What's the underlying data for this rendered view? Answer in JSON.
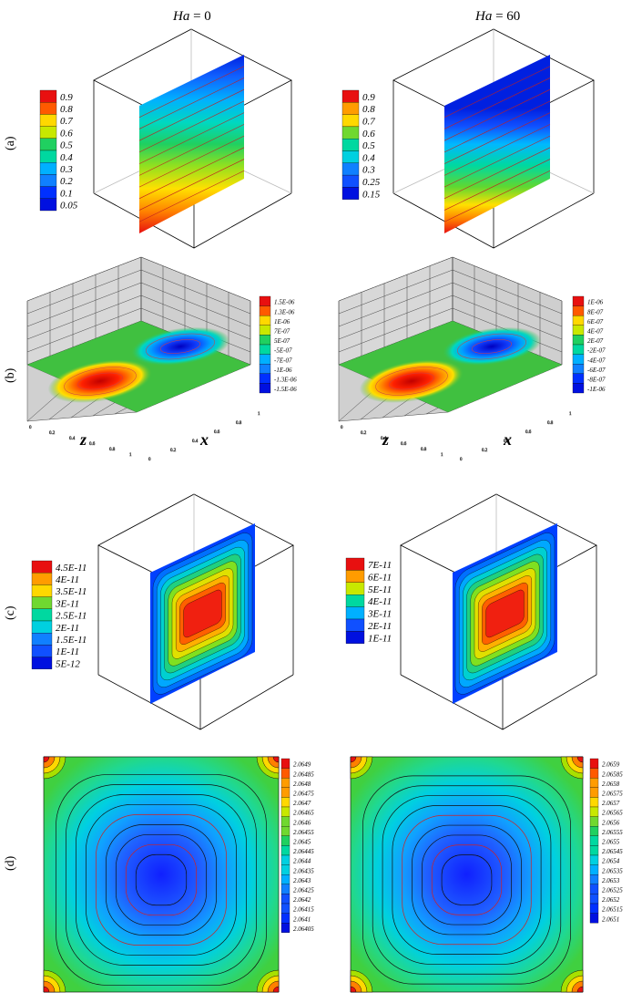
{
  "columns": [
    {
      "ha_symbol": "Ha",
      "ha_text": "= 0"
    },
    {
      "ha_symbol": "Ha",
      "ha_text": "= 60"
    }
  ],
  "rows": [
    {
      "label": "(a)"
    },
    {
      "label": "(b)"
    },
    {
      "label": "(c)"
    },
    {
      "label": "(d)"
    }
  ],
  "axes": {
    "z": "z",
    "x": "x",
    "ticks": [
      "0",
      "0.2",
      "0.4",
      "0.6",
      "0.8",
      "1"
    ]
  },
  "legends": {
    "a_left": [
      "0.9",
      "0.8",
      "0.7",
      "0.6",
      "0.5",
      "0.4",
      "0.3",
      "0.2",
      "0.1",
      "0.05"
    ],
    "a_right": [
      "0.9",
      "0.8",
      "0.7",
      "0.6",
      "0.5",
      "0.4",
      "0.3",
      "0.25",
      "0.15"
    ],
    "b_left": [
      "1.5E-06",
      "1.3E-06",
      "1E-06",
      "7E-07",
      "5E-07",
      "-5E-07",
      "-7E-07",
      "-1E-06",
      "-1.3E-06",
      "-1.5E-06"
    ],
    "b_right": [
      "1E-06",
      "8E-07",
      "6E-07",
      "4E-07",
      "2E-07",
      "-2E-07",
      "-4E-07",
      "-6E-07",
      "-8E-07",
      "-1E-06"
    ],
    "c_left": [
      "4.5E-11",
      "4E-11",
      "3.5E-11",
      "3E-11",
      "2.5E-11",
      "2E-11",
      "1.5E-11",
      "1E-11",
      "5E-12"
    ],
    "c_right": [
      "7E-11",
      "6E-11",
      "5E-11",
      "4E-11",
      "3E-11",
      "2E-11",
      "1E-11"
    ],
    "d_left": [
      "2.0649",
      "2.06485",
      "2.0648",
      "2.06475",
      "2.0647",
      "2.06465",
      "2.0646",
      "2.06455",
      "2.0645",
      "2.06445",
      "2.0644",
      "2.06435",
      "2.0643",
      "2.06425",
      "2.0642",
      "2.06415",
      "2.0641",
      "2.06405"
    ],
    "d_right": [
      "2.0659",
      "2.06585",
      "2.0658",
      "2.06575",
      "2.0657",
      "2.06565",
      "2.0656",
      "2.06555",
      "2.0655",
      "2.06545",
      "2.0654",
      "2.06535",
      "2.0653",
      "2.06525",
      "2.0652",
      "2.06515",
      "2.0651"
    ]
  },
  "colors": {
    "red": "#ee1c1c",
    "orange": "#ff8000",
    "yellow": "#ffd800",
    "lime": "#a8e000",
    "green": "#30d030",
    "teal": "#00d0a0",
    "cyan": "#00c8ff",
    "blue": "#0066ff",
    "navy": "#0000d8"
  }
}
